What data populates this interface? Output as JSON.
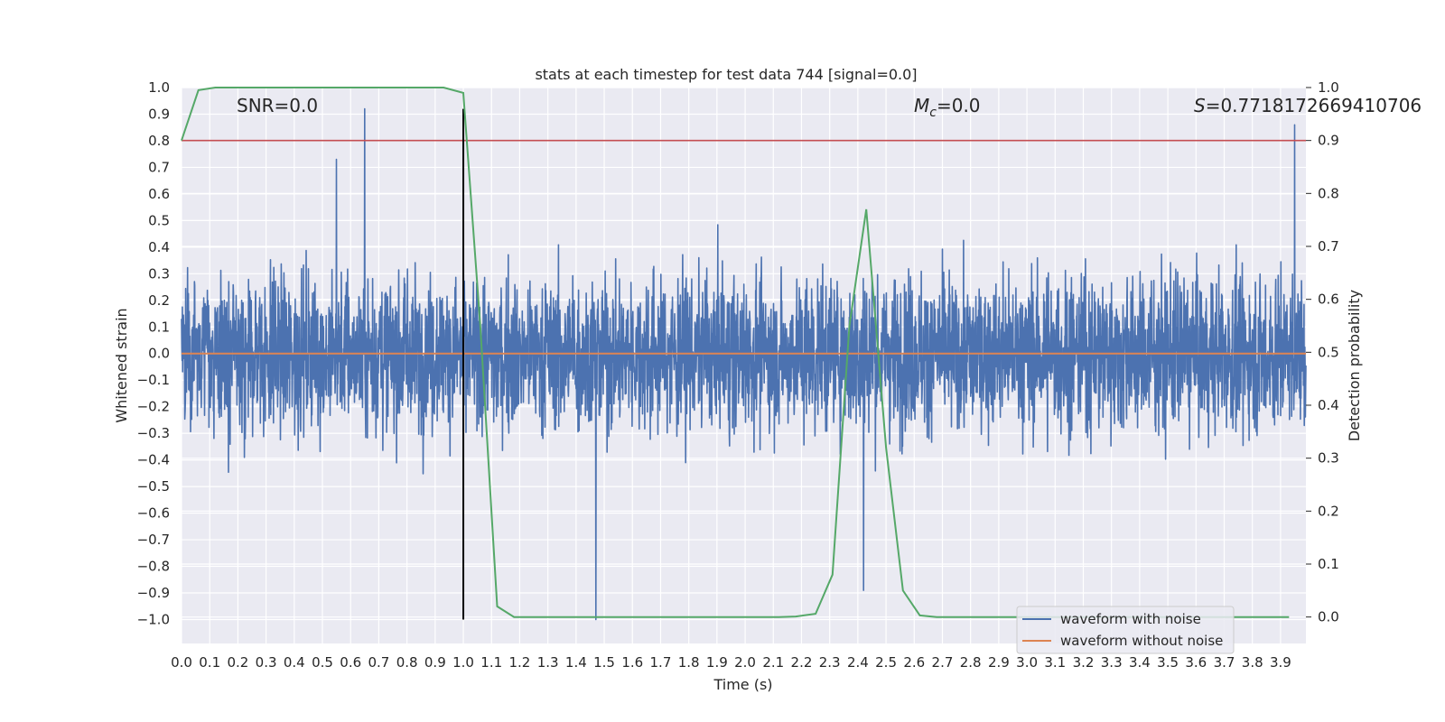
{
  "chart_data": {
    "type": "line",
    "title": "stats at each timestep for test data 744 [signal=0.0]",
    "xlabel": "Time (s)",
    "ylabel": "Whitened strain",
    "y2label": "Detection probability",
    "xlim": [
      0.0,
      3.99
    ],
    "ylim": [
      -1.09,
      1.0
    ],
    "y2lim": [
      -0.05,
      1.0
    ],
    "xticks": [
      "0.0",
      "0.1",
      "0.2",
      "0.3",
      "0.4",
      "0.5",
      "0.6",
      "0.7",
      "0.8",
      "0.9",
      "1.0",
      "1.1",
      "1.2",
      "1.3",
      "1.4",
      "1.5",
      "1.6",
      "1.7",
      "1.8",
      "1.9",
      "2.0",
      "2.1",
      "2.2",
      "2.3",
      "2.4",
      "2.5",
      "2.6",
      "2.7",
      "2.8",
      "2.9",
      "3.0",
      "3.1",
      "3.2",
      "3.3",
      "3.4",
      "3.5",
      "3.6",
      "3.7",
      "3.8",
      "3.9"
    ],
    "yticks": [
      "1.0",
      "0.9",
      "0.8",
      "0.7",
      "0.6",
      "0.5",
      "0.4",
      "0.3",
      "0.2",
      "0.1",
      "0.0",
      "−0.1",
      "−0.2",
      "−0.3",
      "−0.4",
      "−0.5",
      "−0.6",
      "−0.7",
      "−0.8",
      "−0.9",
      "−1.0"
    ],
    "y2ticks": [
      "1.0",
      "0.9",
      "0.8",
      "0.7",
      "0.6",
      "0.5",
      "0.4",
      "0.3",
      "0.2",
      "0.1",
      "0.0"
    ],
    "annotations": {
      "snr": "SNR=0.0",
      "mc_symbol": "M",
      "mc_sub": "c",
      "mc_value": "=0.0",
      "s_symbol": "S",
      "s_value": "=0.7718172669410706"
    },
    "series": [
      {
        "name": "waveform with noise",
        "color": "#4c72b0",
        "axis": "left",
        "description": "dense noise around 0, amplitude mostly within ±0.5, spikes up to 0.92 and down to -1.0",
        "notable_peaks": [
          [
            0.65,
            0.92
          ],
          [
            0.55,
            0.73
          ],
          [
            1.47,
            -1.0
          ],
          [
            2.42,
            -0.89
          ],
          [
            3.95,
            0.86
          ]
        ]
      },
      {
        "name": "waveform without noise",
        "color": "#dd8452",
        "axis": "left",
        "x": [
          0.0,
          3.99
        ],
        "values": [
          0.0,
          0.0
        ]
      },
      {
        "name": "detection probability",
        "color": "#55a868",
        "axis": "right",
        "x": [
          0.0,
          0.06,
          0.12,
          0.18,
          0.25,
          0.31,
          0.37,
          0.43,
          0.5,
          0.56,
          0.62,
          0.68,
          0.75,
          0.81,
          0.87,
          0.93,
          1.0,
          1.06,
          1.12,
          1.18,
          1.25,
          1.31,
          1.37,
          1.43,
          1.5,
          1.56,
          1.62,
          1.68,
          1.75,
          1.81,
          1.87,
          1.93,
          2.0,
          2.06,
          2.12,
          2.18,
          2.25,
          2.31,
          2.37,
          2.43,
          2.5,
          2.56,
          2.62,
          2.68,
          2.75,
          2.81,
          2.87,
          2.93,
          3.0,
          3.06,
          3.12,
          3.18,
          3.25,
          3.31,
          3.37,
          3.43,
          3.5,
          3.56,
          3.62,
          3.68,
          3.75,
          3.81,
          3.87,
          3.93
        ],
        "values": [
          0.9,
          0.995,
          1.0,
          1.0,
          1.0,
          1.0,
          1.0,
          1.0,
          1.0,
          1.0,
          1.0,
          1.0,
          1.0,
          1.0,
          1.0,
          1.0,
          0.99,
          0.55,
          0.02,
          0.0,
          0.0,
          0.0,
          0.0,
          0.0,
          0.0,
          0.0,
          0.0,
          0.0,
          0.0,
          0.0,
          0.0,
          0.0,
          0.0,
          0.0,
          0.0,
          0.001,
          0.006,
          0.08,
          0.55,
          0.77,
          0.32,
          0.05,
          0.003,
          0.0,
          0.0,
          0.0,
          0.0,
          0.0,
          0.0,
          0.0,
          0.0,
          0.0,
          0.0,
          0.0,
          0.0,
          0.0,
          0.0,
          0.0,
          0.0,
          0.0,
          0.0,
          0.0,
          0.0,
          0.0
        ]
      },
      {
        "name": "threshold",
        "color": "#c44e52",
        "axis": "right",
        "value": 0.9
      },
      {
        "name": "event marker",
        "color": "#000000",
        "axis": "left",
        "x": 1.0,
        "range": [
          -1.0,
          0.92
        ]
      }
    ],
    "legend": {
      "placement": "lower-right",
      "items": [
        "waveform with noise",
        "waveform without noise"
      ]
    }
  }
}
